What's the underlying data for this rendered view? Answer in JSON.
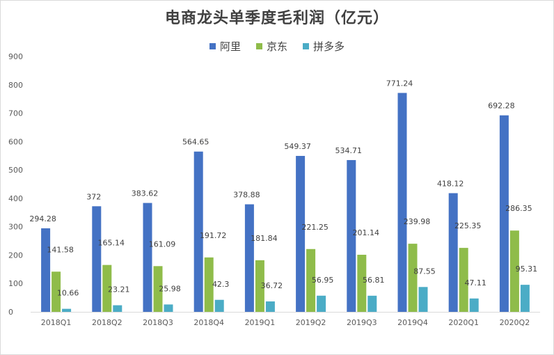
{
  "chart_data": {
    "type": "bar",
    "title": "电商龙头单季度毛利润（亿元）",
    "categories": [
      "2018Q1",
      "2018Q2",
      "2018Q3",
      "2018Q4",
      "2019Q1",
      "2019Q2",
      "2019Q3",
      "2019Q4",
      "2020Q1",
      "2020Q2"
    ],
    "series": [
      {
        "name": "阿里",
        "color": "#4472c4",
        "values": [
          294.28,
          372,
          383.62,
          564.65,
          378.88,
          549.37,
          534.71,
          771.24,
          418.12,
          692.28
        ]
      },
      {
        "name": "京东",
        "color": "#8fbc4a",
        "values": [
          141.58,
          165.14,
          161.09,
          191.72,
          181.84,
          221.25,
          201.14,
          239.98,
          225.35,
          286.35
        ]
      },
      {
        "name": "拼多多",
        "color": "#4bacc6",
        "values": [
          10.66,
          23.21,
          25.98,
          42.3,
          36.72,
          56.95,
          56.81,
          87.55,
          47.11,
          95.31
        ]
      }
    ],
    "value_labels": [
      [
        "294.28",
        "372",
        "383.62",
        "564.65",
        "378.88",
        "549.37",
        "534.71",
        "771.24",
        "418.12",
        "692.28"
      ],
      [
        "141.58",
        "165.14",
        "161.09",
        "191.72",
        "181.84",
        "221.25",
        "201.14",
        "239.98",
        "225.35",
        "286.35"
      ],
      [
        "10.66",
        "23.21",
        "25.98",
        "42.3",
        "36.72",
        "56.95",
        "56.81",
        "87.55",
        "47.11",
        "95.31"
      ]
    ],
    "ylim": [
      0,
      900
    ],
    "yticks": [
      "0",
      "100",
      "200",
      "300",
      "400",
      "500",
      "600",
      "700",
      "800",
      "900"
    ],
    "grid": false,
    "legend_position": "top"
  }
}
